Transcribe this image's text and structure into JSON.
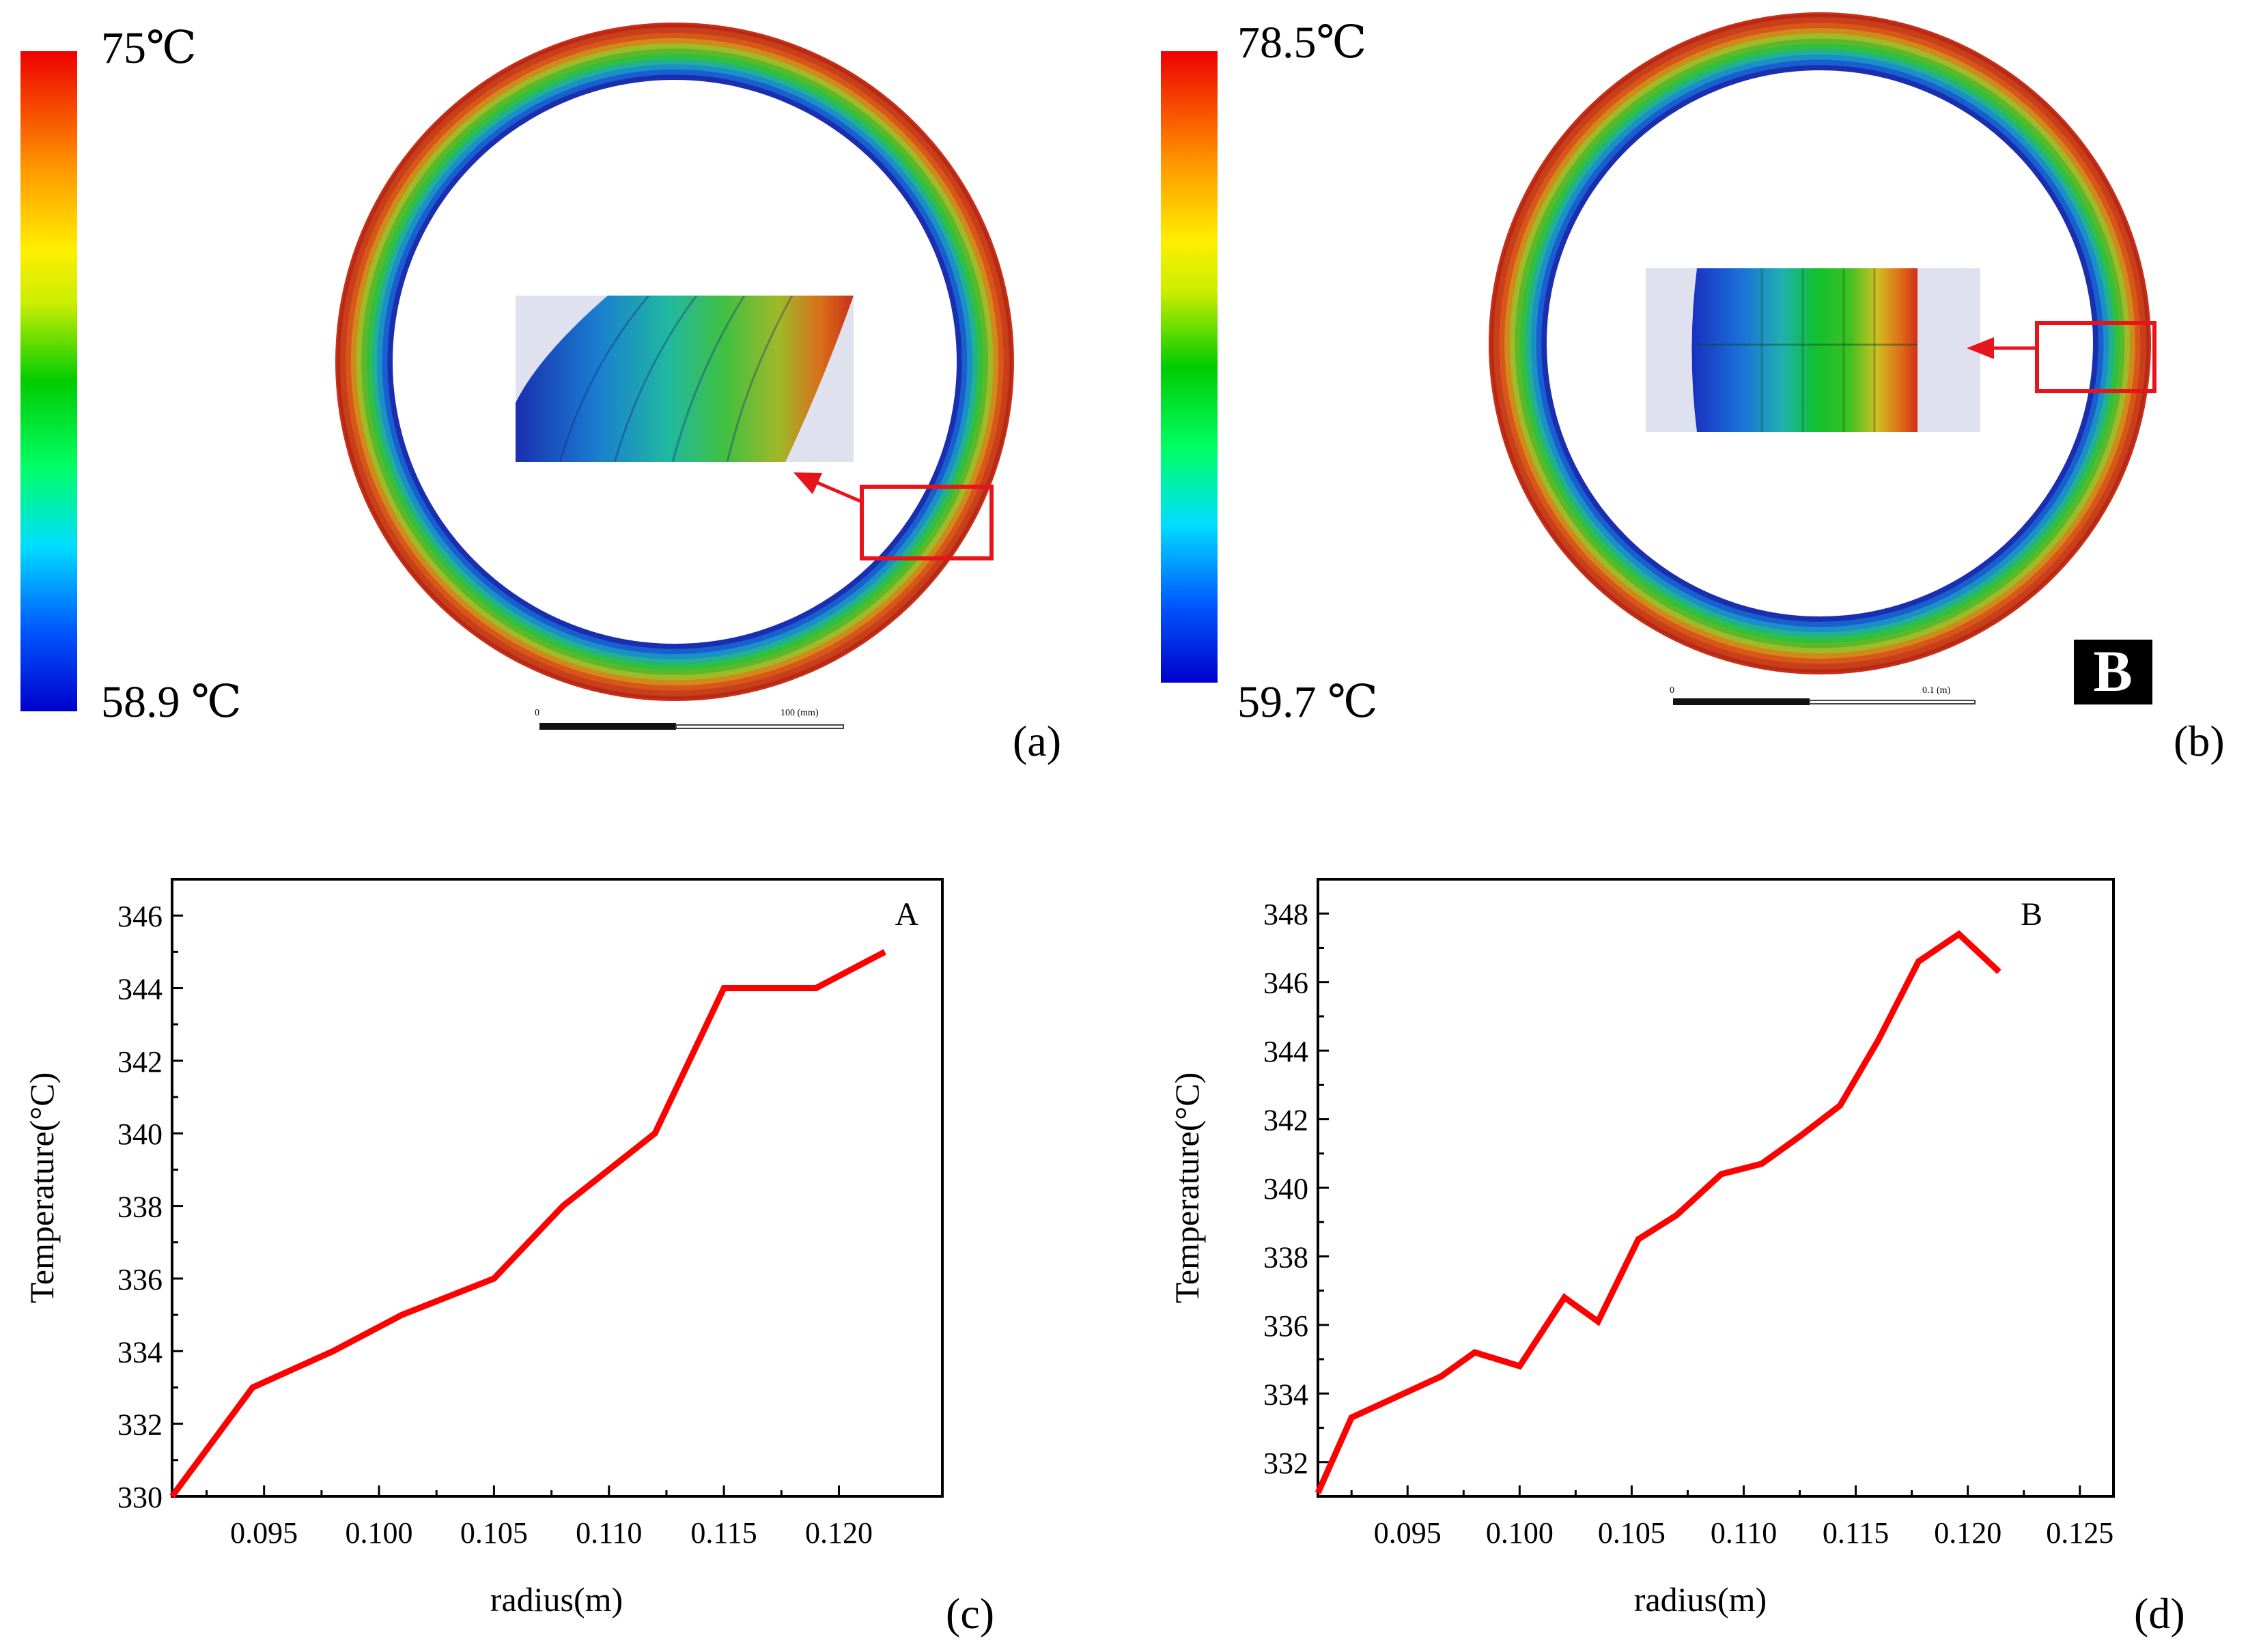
{
  "panels": {
    "a": {
      "label": "(a)",
      "legend_max": "75℃",
      "legend_min": "58.9 ℃",
      "scale_start": "0",
      "scale_end": "100 (mm)"
    },
    "b": {
      "label": "(b)",
      "legend_max": "78.5℃",
      "legend_min": "59.7 ℃",
      "scale_start": "0",
      "scale_end": "0.1 (m)",
      "badge": "B"
    },
    "c": {
      "label": "(c)"
    },
    "d": {
      "label": "(d)"
    }
  },
  "colors": {
    "line": "#ff0000",
    "rainbow": [
      "#0000cc",
      "#0055ff",
      "#00ddff",
      "#00ff66",
      "#00cc00",
      "#ccee00",
      "#ffee00",
      "#ff9900",
      "#ee0000"
    ],
    "contour": [
      "#1a2fb0",
      "#1a5fd0",
      "#1a90c8",
      "#22b090",
      "#2fc040",
      "#5ab82a",
      "#9fba28",
      "#d08a1a",
      "#d9561a",
      "#c8401a",
      "#c83018"
    ]
  },
  "chart_data": [
    {
      "id": "c",
      "type": "line",
      "annotation": "A",
      "xlabel": "radius(m)",
      "ylabel": "Temperature(°C)",
      "xlim": [
        0.091,
        0.1245
      ],
      "ylim": [
        330,
        347
      ],
      "xticks": [
        0.095,
        0.1,
        0.105,
        0.11,
        0.115,
        0.12
      ],
      "xtick_labels": [
        "0.095",
        "0.100",
        "0.105",
        "0.110",
        "0.115",
        "0.120"
      ],
      "yticks": [
        330,
        332,
        334,
        336,
        338,
        340,
        342,
        344,
        346
      ],
      "ytick_labels": [
        "330",
        "332",
        "334",
        "336",
        "338",
        "340",
        "342",
        "344",
        "346"
      ],
      "x": [
        0.091,
        0.0945,
        0.098,
        0.101,
        0.105,
        0.108,
        0.112,
        0.115,
        0.119,
        0.122
      ],
      "y": [
        330,
        333,
        334,
        335,
        336,
        338,
        340,
        344,
        344,
        345
      ]
    },
    {
      "id": "d",
      "type": "line",
      "annotation": "B",
      "xlabel": "radius(m)",
      "ylabel": "Temperature(°C)",
      "xlim": [
        0.091,
        0.1265
      ],
      "ylim": [
        331,
        349
      ],
      "xticks": [
        0.095,
        0.1,
        0.105,
        0.11,
        0.115,
        0.12,
        0.125
      ],
      "xtick_labels": [
        "0.095",
        "0.100",
        "0.105",
        "0.110",
        "0.115",
        "0.120",
        "0.125"
      ],
      "yticks": [
        332,
        334,
        336,
        338,
        340,
        342,
        344,
        346,
        348
      ],
      "ytick_labels": [
        "332",
        "334",
        "336",
        "338",
        "340",
        "342",
        "344",
        "346",
        "348"
      ],
      "x": [
        0.091,
        0.0925,
        0.0945,
        0.0965,
        0.098,
        0.1,
        0.102,
        0.1035,
        0.1053,
        0.107,
        0.109,
        0.1108,
        0.1125,
        0.1143,
        0.116,
        0.1178,
        0.1196,
        0.1214
      ],
      "y": [
        331.1,
        333.3,
        333.9,
        334.5,
        335.2,
        334.8,
        336.8,
        336.1,
        338.5,
        339.2,
        340.4,
        340.7,
        341.5,
        342.4,
        344.3,
        346.6,
        347.4,
        346.3
      ]
    }
  ]
}
